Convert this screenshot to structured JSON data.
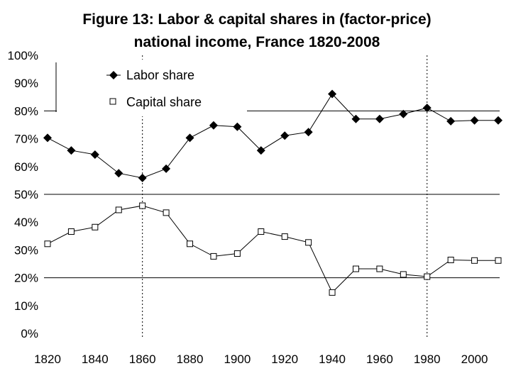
{
  "chart_data": {
    "type": "line",
    "title": "Figure 13: Labor & capital shares in (factor-price)",
    "subtitle": "national income, France 1820-2008",
    "xlabel": "",
    "ylabel": "",
    "x": [
      1820,
      1830,
      1840,
      1850,
      1860,
      1870,
      1880,
      1890,
      1900,
      1910,
      1920,
      1930,
      1940,
      1950,
      1960,
      1970,
      1980,
      1990,
      2000,
      2010
    ],
    "xlim": [
      1820,
      2010
    ],
    "xticks": [
      1820,
      1840,
      1860,
      1880,
      1900,
      1920,
      1940,
      1960,
      1980,
      2000
    ],
    "xtick_labels": [
      "1820",
      "1840",
      "1860",
      "1880",
      "1900",
      "1920",
      "1940",
      "1960",
      "1980",
      "2000"
    ],
    "ylim": [
      0,
      100
    ],
    "yticks": [
      0,
      10,
      20,
      30,
      40,
      50,
      60,
      70,
      80,
      90,
      100
    ],
    "ytick_labels": [
      "0%",
      "10%",
      "20%",
      "30%",
      "40%",
      "50%",
      "60%",
      "70%",
      "80%",
      "90%",
      "100%"
    ],
    "gridlines_y": [
      20,
      50,
      80
    ],
    "vlines_x": [
      1860,
      1980
    ],
    "legend_position": "top-left",
    "series": [
      {
        "name": "Labor share",
        "marker": "diamond",
        "color": "#000000",
        "values": [
          70.3,
          65.8,
          64.3,
          57.6,
          55.9,
          59.2,
          70.3,
          74.8,
          74.3,
          65.8,
          71.1,
          72.4,
          86.1,
          77.1,
          77.1,
          78.9,
          81.1,
          76.3,
          76.6,
          76.6
        ]
      },
      {
        "name": "Capital share",
        "marker": "square",
        "color": "#000000",
        "values": [
          32.2,
          36.6,
          38.2,
          44.4,
          45.9,
          43.4,
          32.2,
          27.7,
          28.7,
          36.6,
          34.8,
          32.7,
          14.7,
          23.2,
          23.2,
          21.2,
          20.4,
          26.4,
          26.2,
          26.2
        ]
      }
    ]
  }
}
